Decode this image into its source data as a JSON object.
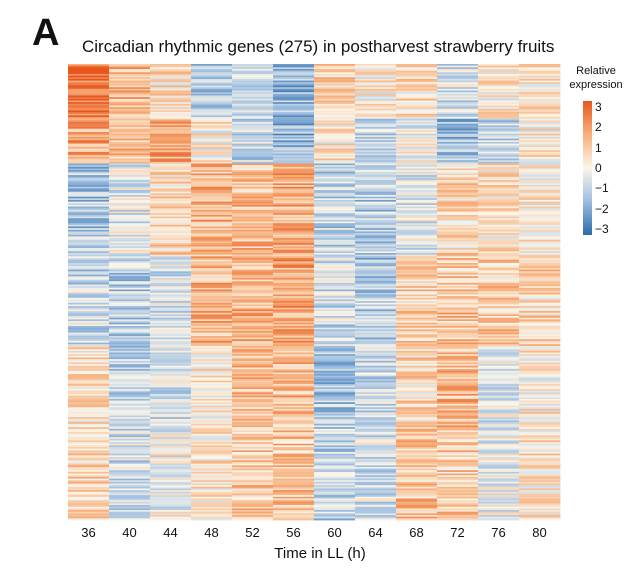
{
  "panel_label": "A",
  "chart_data": {
    "type": "heatmap",
    "title": "Circadian rhythmic genes (275) in postharvest strawberry fruits",
    "xlabel": "Time in LL (h)",
    "ylabel": "",
    "x": [
      "36",
      "40",
      "44",
      "48",
      "52",
      "56",
      "60",
      "64",
      "68",
      "72",
      "76",
      "80"
    ],
    "n_genes": 275,
    "color_scale": {
      "title": "Relative expression",
      "min": -3,
      "max": 3,
      "ticks": [
        3,
        2,
        1,
        0,
        -1,
        -2,
        -3
      ],
      "tick_labels": [
        "3",
        "2",
        "1",
        "0",
        "−1",
        "−2",
        "−3"
      ],
      "colors": [
        "#2c6aa8",
        "#9cbde0",
        "#fbf6ea",
        "#f7b07c",
        "#e8561e"
      ]
    },
    "cluster_pattern": {
      "description_rows": [
        {
          "rows_fraction": [
            0.0,
            0.12
          ],
          "values": [
            2.6,
            1.4,
            0.5,
            -1.2,
            -0.8,
            -1.5,
            0.7,
            0.2,
            0.6,
            -0.6,
            0.3,
            0.5
          ]
        },
        {
          "rows_fraction": [
            0.12,
            0.22
          ],
          "values": [
            1.6,
            1.0,
            1.8,
            0.2,
            -0.8,
            -1.6,
            0.4,
            -0.7,
            -0.2,
            -1.4,
            -0.8,
            0.3
          ]
        },
        {
          "rows_fraction": [
            0.22,
            0.42
          ],
          "values": [
            -1.2,
            -0.4,
            0.6,
            1.4,
            1.2,
            1.5,
            -0.9,
            -1.0,
            -0.4,
            0.6,
            0.4,
            0.2
          ]
        },
        {
          "rows_fraction": [
            0.42,
            0.62
          ],
          "values": [
            -0.8,
            -1.0,
            -0.5,
            1.3,
            1.4,
            1.6,
            -0.6,
            -1.1,
            0.8,
            1.0,
            0.8,
            0.7
          ]
        },
        {
          "rows_fraction": [
            0.62,
            0.8
          ],
          "values": [
            0.4,
            -0.9,
            -0.7,
            0.3,
            1.1,
            1.2,
            -1.2,
            -0.7,
            0.6,
            1.2,
            -0.4,
            0.3
          ]
        },
        {
          "rows_fraction": [
            0.8,
            1.0
          ],
          "values": [
            0.7,
            -0.6,
            -0.2,
            0.5,
            0.9,
            1.0,
            -1.0,
            -0.6,
            1.0,
            0.9,
            -0.2,
            0.4
          ]
        }
      ]
    }
  }
}
